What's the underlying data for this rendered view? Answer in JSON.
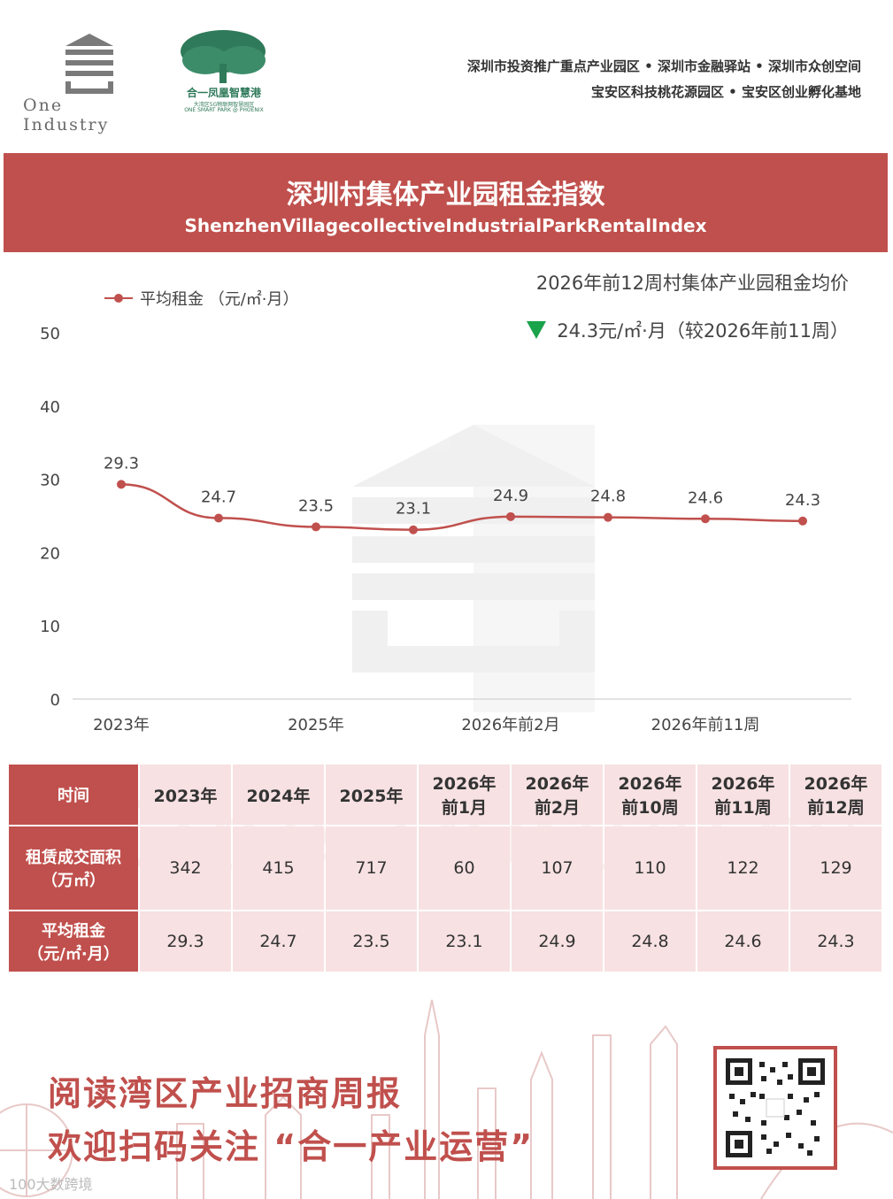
{
  "header": {
    "logo_left_text": "One Industry",
    "logo_right_cn": "合一凤凰智慧港",
    "logo_right_sub1": "大湾区5G物联网智慧园区",
    "logo_right_sub2": "ONE SMART PARK @ PHOENIX",
    "tagline_line1": "深圳市投资推广重点产业园区 • 深圳市金融驿站 • 深圳市众创空间",
    "tagline_line2": "宝安区科技桃花源园区 • 宝安区创业孵化基地"
  },
  "banner": {
    "title": "深圳村集体产业园租金指数",
    "subtitle": "ShenzhenVillagecollectiveIndustrialParkRentalIndex"
  },
  "summary": {
    "title": "2026年前12周村集体产业园租金均价",
    "value_text": "24.3元/㎡·月（较2026年前11周）",
    "trend": "down",
    "trend_color": "#1aa34a"
  },
  "chart_data": {
    "type": "line",
    "categories": [
      "2023年",
      "2024年",
      "2025年",
      "2026年前1月",
      "2026年前2月",
      "2026年前10周",
      "2026年前11周",
      "2026年前12周"
    ],
    "shown_tick_labels": [
      "2023年",
      "2025年",
      "2026年前2月",
      "2026年前11周"
    ],
    "series": [
      {
        "name": "平均租金 （元/㎡·月）",
        "values": [
          29.3,
          24.7,
          23.5,
          23.1,
          24.9,
          24.8,
          24.6,
          24.3
        ],
        "color": "#c0504d"
      }
    ],
    "ylim": [
      0,
      50
    ],
    "yticks": [
      0,
      10,
      20,
      30,
      40,
      50
    ],
    "grid": false,
    "legend_position": "top-left",
    "data_labels": true
  },
  "table": {
    "header_label": "时间",
    "columns": [
      [
        "2023年"
      ],
      [
        "2024年"
      ],
      [
        "2025年"
      ],
      [
        "2026年",
        "前1月"
      ],
      [
        "2026年",
        "前2月"
      ],
      [
        "2026年",
        "前10周"
      ],
      [
        "2026年",
        "前11周"
      ],
      [
        "2026年",
        "前12周"
      ]
    ],
    "rows": [
      {
        "label": [
          "租赁成交面积",
          "（万㎡）"
        ],
        "values": [
          "342",
          "415",
          "717",
          "60",
          "107",
          "110",
          "122",
          "129"
        ]
      },
      {
        "label": [
          "平均租金",
          "（元/㎡·月）"
        ],
        "values": [
          "29.3",
          "24.7",
          "23.5",
          "23.1",
          "24.9",
          "24.8",
          "24.6",
          "24.3"
        ]
      }
    ],
    "watermark": "One Industry"
  },
  "footer": {
    "line1": "阅读湾区产业招商周报",
    "line2": "欢迎扫码关注 “合一产业运营”",
    "source_mark": "100大数跨境"
  },
  "colors": {
    "accent": "#c0504d",
    "table_cell": "#f7e1e2",
    "brand_green": "#2f7a5a"
  }
}
